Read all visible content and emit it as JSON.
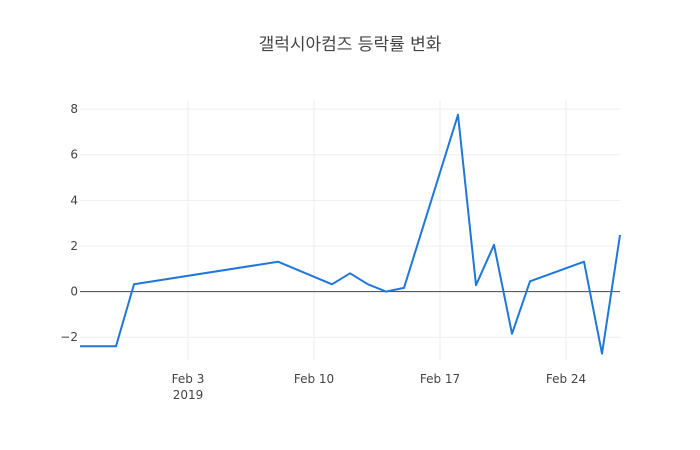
{
  "chart_data": {
    "type": "line",
    "title": "갤럭시아컴즈 등락률 변화",
    "xlabel": "",
    "ylabel": "",
    "x_range": [
      "2019-01-28",
      "2019-02-27"
    ],
    "ylim": [
      -3.0,
      8.4
    ],
    "grid": true,
    "line_color": "#1f77d8",
    "x_ticks": [
      {
        "date": "2019-02-03",
        "label": "Feb 3",
        "sublabel": "2019"
      },
      {
        "date": "2019-02-10",
        "label": "Feb 10",
        "sublabel": ""
      },
      {
        "date": "2019-02-17",
        "label": "Feb 17",
        "sublabel": ""
      },
      {
        "date": "2019-02-24",
        "label": "Feb 24",
        "sublabel": ""
      }
    ],
    "y_ticks": [
      {
        "value": -2,
        "label": "−2"
      },
      {
        "value": 0,
        "label": "0"
      },
      {
        "value": 2,
        "label": "2"
      },
      {
        "value": 4,
        "label": "4"
      },
      {
        "value": 6,
        "label": "6"
      },
      {
        "value": 8,
        "label": "8"
      }
    ],
    "series": [
      {
        "x": [
          "2019-01-28",
          "2019-01-29",
          "2019-01-30",
          "2019-01-31",
          "2019-02-08",
          "2019-02-11",
          "2019-02-12",
          "2019-02-13",
          "2019-02-14",
          "2019-02-15",
          "2019-02-18",
          "2019-02-19",
          "2019-02-20",
          "2019-02-21",
          "2019-02-22",
          "2019-02-25",
          "2019-02-26",
          "2019-02-27"
        ],
        "y": [
          -2.4,
          -2.4,
          -2.4,
          0.32,
          1.31,
          0.32,
          0.8,
          0.32,
          0.0,
          0.16,
          7.75,
          0.28,
          2.05,
          -1.85,
          0.45,
          1.31,
          -2.72,
          2.48
        ]
      }
    ]
  }
}
